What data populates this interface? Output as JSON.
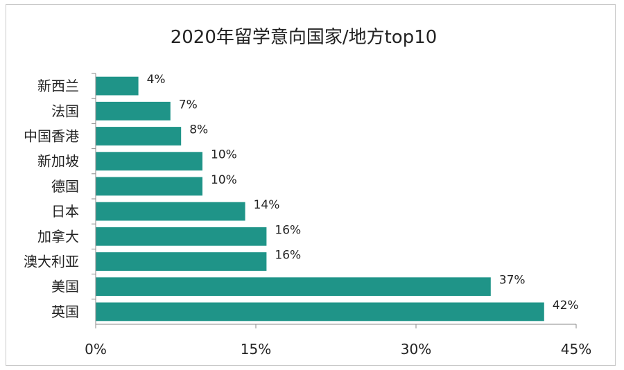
{
  "chart_data": {
    "type": "bar",
    "orientation": "horizontal",
    "title": "2020年留学意向国家/地方top10",
    "xlabel": "",
    "ylabel": "",
    "categories": [
      "新西兰",
      "法国",
      "中国香港",
      "新加坡",
      "德国",
      "日本",
      "加拿大",
      "澳大利亚",
      "美国",
      "英国"
    ],
    "values": [
      4,
      7,
      8,
      10,
      10,
      14,
      16,
      16,
      37,
      42
    ],
    "value_labels": [
      "4%",
      "7%",
      "8%",
      "10%",
      "10%",
      "14%",
      "16%",
      "16%",
      "37%",
      "42%"
    ],
    "xlim": [
      0,
      45
    ],
    "xticks": [
      0,
      15,
      30,
      45
    ],
    "xtick_labels": [
      "0%",
      "15%",
      "30%",
      "45%"
    ],
    "bar_color": "#1f9488",
    "grid": false,
    "legend": "none"
  }
}
